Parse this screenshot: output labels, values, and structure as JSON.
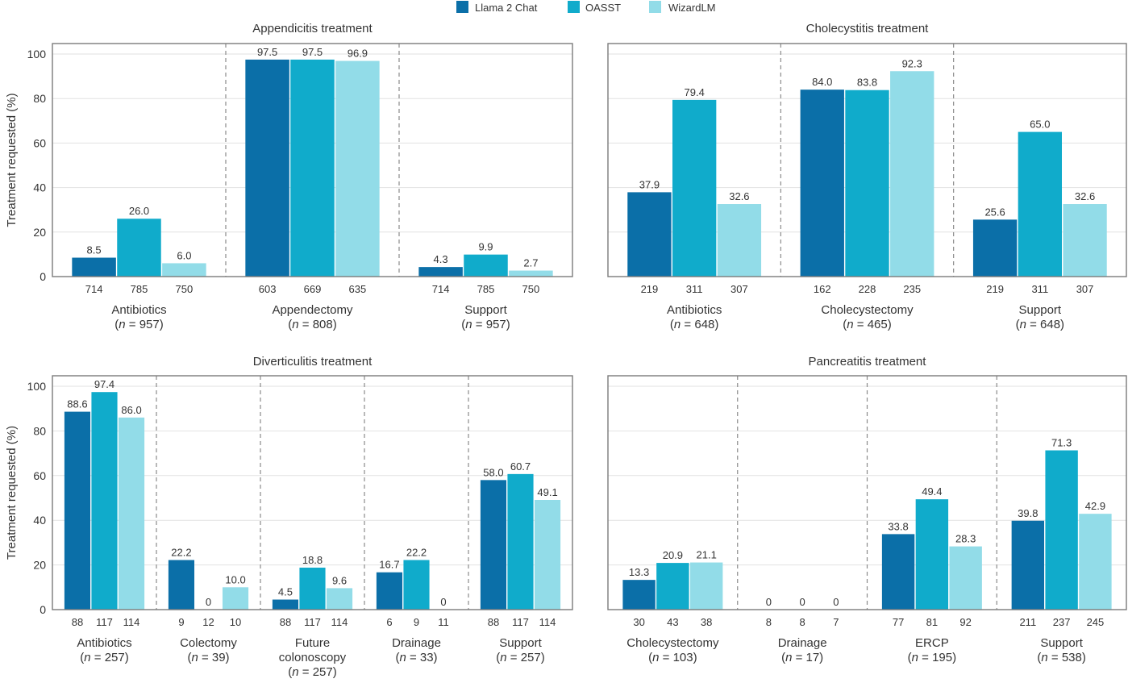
{
  "chart_data": {
    "type": "bar",
    "legend": {
      "placement": "top-center",
      "entries": [
        {
          "name": "Llama 2 Chat",
          "color": "#0b6fa8"
        },
        {
          "name": "OASST",
          "color": "#10abcb"
        },
        {
          "name": "WizardLM",
          "color": "#92dce8"
        }
      ]
    },
    "ylabel": "Treatment requested (%)",
    "ylim": [
      0,
      100
    ],
    "yticks": [
      0,
      20,
      40,
      60,
      80,
      100
    ],
    "grid": true,
    "panels": [
      {
        "title": "Appendicitis treatment",
        "groups": [
          {
            "name": "Antibiotics",
            "n_label": "(n = 957)",
            "n_total": 957,
            "values": [
              8.5,
              26.0,
              6.0
            ],
            "labels": [
              "8.5",
              "26.0",
              "6.0"
            ],
            "counts": [
              714,
              785,
              750
            ]
          },
          {
            "name": "Appendectomy",
            "n_label": "(n = 808)",
            "n_total": 808,
            "values": [
              97.5,
              97.5,
              96.9
            ],
            "labels": [
              "97.5",
              "97.5",
              "96.9"
            ],
            "counts": [
              603,
              669,
              635
            ]
          },
          {
            "name": "Support",
            "n_label": "(n = 957)",
            "n_total": 957,
            "values": [
              4.3,
              9.9,
              2.7
            ],
            "labels": [
              "4.3",
              "9.9",
              "2.7"
            ],
            "counts": [
              714,
              785,
              750
            ]
          }
        ]
      },
      {
        "title": "Cholecystitis treatment",
        "groups": [
          {
            "name": "Antibiotics",
            "n_label": "(n = 648)",
            "n_total": 648,
            "values": [
              37.9,
              79.4,
              32.6
            ],
            "labels": [
              "37.9",
              "79.4",
              "32.6"
            ],
            "counts": [
              219,
              311,
              307
            ]
          },
          {
            "name": "Cholecystectomy",
            "n_label": "(n = 465)",
            "n_total": 465,
            "values": [
              84.0,
              83.8,
              92.3
            ],
            "labels": [
              "84.0",
              "83.8",
              "92.3"
            ],
            "counts": [
              162,
              228,
              235
            ]
          },
          {
            "name": "Support",
            "n_label": "(n = 648)",
            "n_total": 648,
            "values": [
              25.6,
              65.0,
              32.6
            ],
            "labels": [
              "25.6",
              "65.0",
              "32.6"
            ],
            "counts": [
              219,
              311,
              307
            ]
          }
        ]
      },
      {
        "title": "Diverticulitis treatment",
        "groups": [
          {
            "name": "Antibiotics",
            "n_label": "(n = 257)",
            "n_total": 257,
            "values": [
              88.6,
              97.4,
              86.0
            ],
            "labels": [
              "88.6",
              "97.4",
              "86.0"
            ],
            "counts": [
              88,
              117,
              114
            ]
          },
          {
            "name": "Colectomy",
            "n_label": "(n = 39)",
            "n_total": 39,
            "values": [
              22.2,
              0,
              10.0
            ],
            "labels": [
              "22.2",
              "0",
              "10.0"
            ],
            "counts": [
              9,
              12,
              10
            ]
          },
          {
            "name": "Future colonoscopy",
            "name_lines": [
              "Future",
              "colonoscopy"
            ],
            "n_label": "(n = 257)",
            "n_total": 257,
            "values": [
              4.5,
              18.8,
              9.6
            ],
            "labels": [
              "4.5",
              "18.8",
              "9.6"
            ],
            "counts": [
              88,
              117,
              114
            ]
          },
          {
            "name": "Drainage",
            "n_label": "(n = 33)",
            "n_total": 33,
            "values": [
              16.7,
              22.2,
              0
            ],
            "labels": [
              "16.7",
              "22.2",
              "0"
            ],
            "counts": [
              6,
              9,
              11
            ]
          },
          {
            "name": "Support",
            "n_label": "(n = 257)",
            "n_total": 257,
            "values": [
              58.0,
              60.7,
              49.1
            ],
            "labels": [
              "58.0",
              "60.7",
              "49.1"
            ],
            "counts": [
              88,
              117,
              114
            ]
          }
        ]
      },
      {
        "title": "Pancreatitis treatment",
        "groups": [
          {
            "name": "Cholecystectomy",
            "n_label": "(n = 103)",
            "n_total": 103,
            "values": [
              13.3,
              20.9,
              21.1
            ],
            "labels": [
              "13.3",
              "20.9",
              "21.1"
            ],
            "counts": [
              30,
              43,
              38
            ]
          },
          {
            "name": "Drainage",
            "n_label": "(n = 17)",
            "n_total": 17,
            "values": [
              0,
              0,
              0
            ],
            "labels": [
              "0",
              "0",
              "0"
            ],
            "counts": [
              8,
              8,
              7
            ]
          },
          {
            "name": "ERCP",
            "n_label": "(n = 195)",
            "n_total": 195,
            "values": [
              33.8,
              49.4,
              28.3
            ],
            "labels": [
              "33.8",
              "49.4",
              "28.3"
            ],
            "counts": [
              77,
              81,
              92
            ]
          },
          {
            "name": "Support",
            "n_label": "(n = 538)",
            "n_total": 538,
            "values": [
              39.8,
              71.3,
              42.9
            ],
            "labels": [
              "39.8",
              "71.3",
              "42.9"
            ],
            "counts": [
              211,
              237,
              245
            ]
          }
        ]
      }
    ]
  }
}
